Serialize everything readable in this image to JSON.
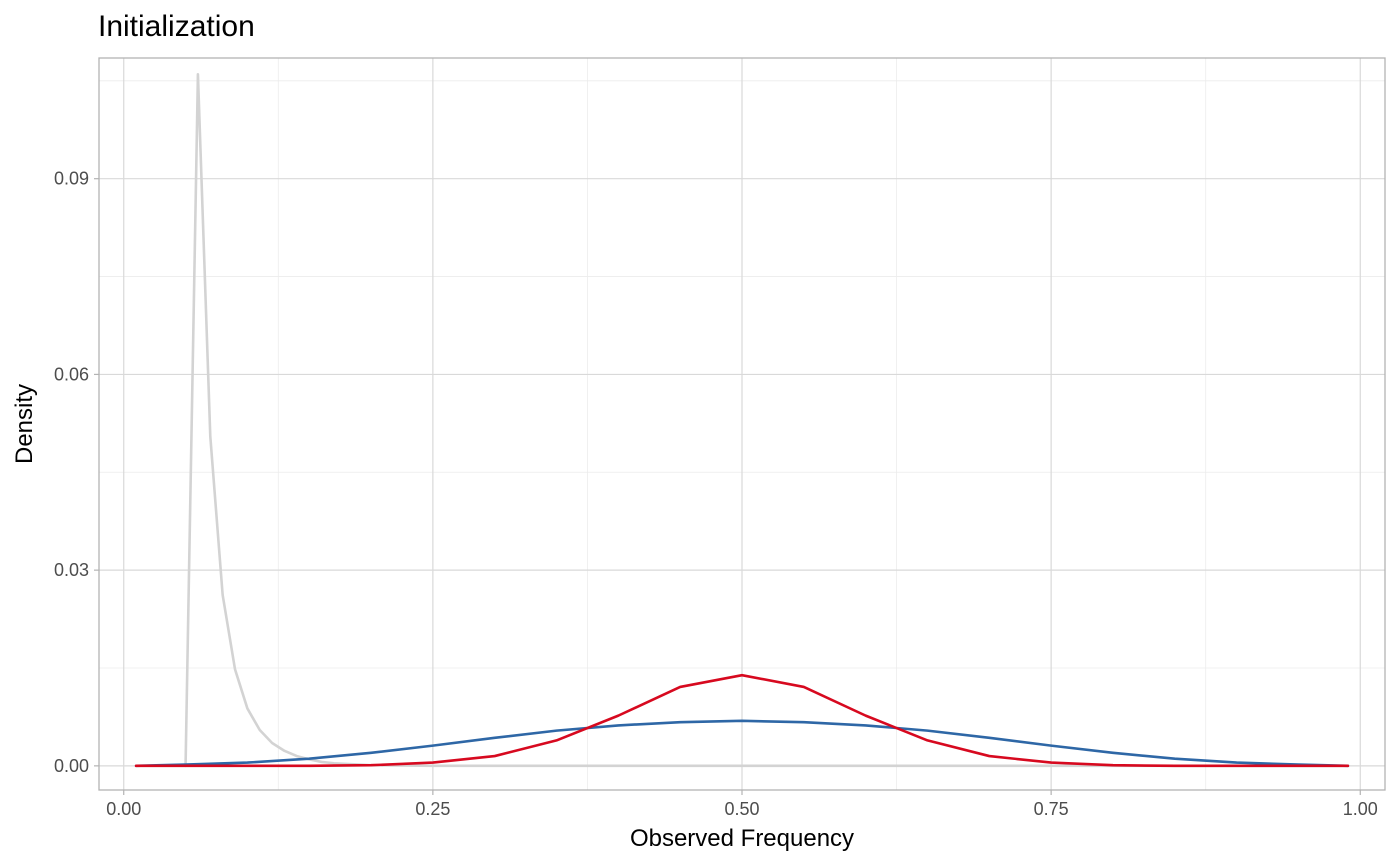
{
  "chart_data": {
    "type": "line",
    "title": "Initialization",
    "xlabel": "Observed Frequency",
    "ylabel": "Density",
    "xlim": [
      -0.02,
      1.02
    ],
    "ylim": [
      -0.0037,
      0.1085
    ],
    "x_ticks": [
      0.0,
      0.25,
      0.5,
      0.75,
      1.0
    ],
    "x_tick_labels": [
      "0.00",
      "0.25",
      "0.50",
      "0.75",
      "1.00"
    ],
    "y_ticks": [
      0.0,
      0.03,
      0.06,
      0.09
    ],
    "y_tick_labels": [
      "0.00",
      "0.03",
      "0.06",
      "0.09"
    ],
    "x_minor_ticks": [
      0.125,
      0.375,
      0.625,
      0.875
    ],
    "y_minor_ticks": [
      0.015,
      0.045,
      0.075,
      0.105
    ],
    "grid": true,
    "legend": "none",
    "series": [
      {
        "color": "#d3d3d3",
        "x": [
          0.05,
          0.06,
          0.07,
          0.08,
          0.09,
          0.1,
          0.11,
          0.12,
          0.13,
          0.14,
          0.15,
          0.16,
          0.17,
          0.18,
          0.2,
          0.25,
          0.3,
          0.4,
          0.5,
          0.6,
          0.7,
          0.8,
          0.9,
          0.99
        ],
        "y": [
          0.0,
          0.106,
          0.0505,
          0.0262,
          0.0148,
          0.0088,
          0.0055,
          0.0035,
          0.0023,
          0.0015,
          0.001,
          0.0006,
          0.0004,
          0.0003,
          0.0001,
          0.0,
          0.0,
          0.0,
          0.0,
          0.0,
          0.0,
          0.0,
          0.0,
          0.0
        ]
      },
      {
        "color": "#2e67a6",
        "x": [
          0.01,
          0.05,
          0.1,
          0.15,
          0.2,
          0.25,
          0.3,
          0.35,
          0.4,
          0.45,
          0.5,
          0.55,
          0.6,
          0.65,
          0.7,
          0.75,
          0.8,
          0.85,
          0.9,
          0.95,
          0.99
        ],
        "y": [
          0.0,
          0.0002,
          0.0005,
          0.0011,
          0.002,
          0.0031,
          0.0043,
          0.0054,
          0.0062,
          0.0067,
          0.0069,
          0.0067,
          0.0062,
          0.0054,
          0.0043,
          0.0031,
          0.002,
          0.0011,
          0.0005,
          0.0002,
          0.0
        ]
      },
      {
        "color": "#d7091f",
        "x": [
          0.01,
          0.15,
          0.2,
          0.25,
          0.3,
          0.35,
          0.4,
          0.45,
          0.5,
          0.55,
          0.6,
          0.65,
          0.7,
          0.75,
          0.8,
          0.85,
          0.99
        ],
        "y": [
          0.0,
          0.0,
          0.0001,
          0.0005,
          0.0015,
          0.0039,
          0.0077,
          0.0121,
          0.0139,
          0.0121,
          0.0077,
          0.0039,
          0.0015,
          0.0005,
          0.0001,
          0.0,
          0.0
        ]
      }
    ]
  }
}
